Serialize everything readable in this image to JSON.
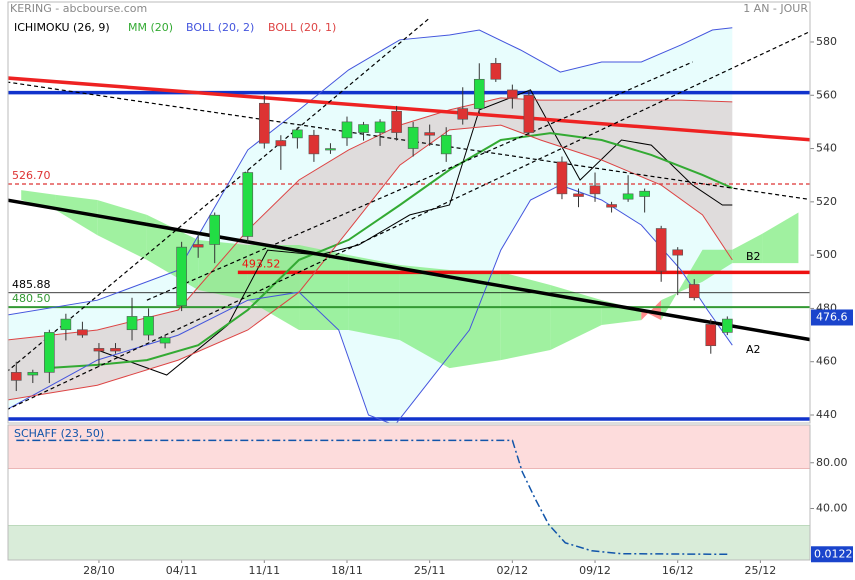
{
  "header": {
    "title": "KERING - abcbourse.com",
    "period": "1 AN - JOUR"
  },
  "chart_data": [
    {
      "type": "candlestick",
      "xlim": [
        -0.5,
        48
      ],
      "ylim": [
        437,
        595
      ],
      "yticks": [
        440,
        460,
        480,
        500,
        520,
        540,
        560,
        580
      ],
      "up_color": "#22dd44",
      "down_color": "#dd3333",
      "candles": {
        "x": [
          0,
          1,
          2,
          3,
          4,
          5,
          6,
          7,
          8,
          9,
          10,
          11,
          12,
          14,
          15,
          16,
          17,
          18,
          19,
          20,
          21,
          22,
          23,
          24,
          25,
          26,
          27,
          28,
          29,
          30,
          31,
          33,
          34,
          35,
          36,
          37,
          38,
          39,
          40,
          41,
          42,
          43
        ],
        "open": [
          456,
          455,
          456,
          472,
          472,
          465,
          465,
          472,
          470,
          467,
          481,
          504,
          504,
          507,
          557,
          543,
          544,
          545,
          540,
          544,
          546,
          546,
          554,
          540,
          546,
          538,
          555,
          555,
          572,
          562,
          560,
          535,
          523,
          526,
          519,
          521,
          522,
          510,
          502,
          489,
          474,
          471
        ],
        "high": [
          460,
          457,
          472,
          478,
          475,
          467,
          467,
          484,
          480,
          470,
          505,
          508,
          516,
          532,
          560,
          545,
          548,
          547,
          542,
          552,
          550,
          551,
          556,
          550,
          549,
          548,
          563,
          572,
          574,
          564,
          562,
          537,
          525,
          531,
          520,
          530,
          525,
          511,
          503,
          491,
          476,
          477
        ],
        "low": [
          449,
          452,
          452,
          468,
          469,
          458,
          463,
          468,
          468,
          465,
          479,
          499,
          497,
          505,
          540,
          532,
          540,
          535,
          538,
          541,
          543,
          541,
          543,
          537,
          541,
          535,
          549,
          553,
          565,
          555,
          545,
          521,
          518,
          520,
          516,
          520,
          516,
          490,
          485,
          483,
          463,
          470
        ],
        "close": [
          453,
          456,
          471,
          476,
          470,
          464,
          464,
          477,
          477,
          469,
          503,
          503,
          515,
          531,
          542,
          541,
          547,
          538,
          540,
          550,
          549,
          550,
          546,
          548,
          545,
          545,
          551,
          566,
          566,
          559,
          546,
          523,
          522,
          523,
          518,
          523,
          524,
          494,
          500,
          484,
          466,
          476
        ]
      },
      "series": [
        {
          "name": "ICHIMOKU (26, 9)",
          "color": "#000000",
          "x": [
            4.9,
            9.1,
            12.8,
            15.2,
            18.3,
            20.7,
            23.8,
            26.2,
            28.0,
            31.1,
            34.1,
            36.6,
            38.4,
            40.9,
            42.7,
            43.3
          ],
          "values": [
            464.4,
            455,
            473.8,
            501.9,
            500,
            503.8,
            515.1,
            518.8,
            554.5,
            562,
            528.2,
            543.2,
            541.3,
            526.3,
            518.8,
            518.8
          ],
          "cloud": {
            "colors": [
              "#ff6f6f",
              "#88ee88"
            ],
            "x": [
              0.3,
              2.4,
              4.9,
              7.9,
              11.0,
              14.0,
              17.1,
              20.1,
              23.2,
              26.2,
              29.3,
              32.3,
              35.4,
              37.8,
              39.0,
              41.5,
              43.3,
              45.1,
              47.3
            ],
            "span_a": [
              524.4,
              522.6,
              520.7,
              515.1,
              505.7,
              503.8,
              503.8,
              500,
              496.3,
              494.4,
              493.7,
              488.8,
              483.1,
              479.4,
              475.6,
              502,
              502,
              508,
              516
            ],
            "span_b": [
              520.7,
              516.9,
              507.5,
              498.2,
              486.9,
              483.1,
              471.9,
              471.9,
              468.1,
              457.6,
              460.6,
              464.4,
              473.8,
              475.6,
              483.1,
              490,
              497,
              497,
              497
            ]
          },
          "labels": [
            "B2",
            "A2"
          ]
        },
        {
          "name": "MM (20)",
          "color": "#33aa33",
          "x": [
            1.8,
            4.9,
            7.9,
            11.0,
            14.0,
            17.1,
            20.1,
            23.2,
            26.2,
            29.3,
            32.3,
            35.4,
            38.4,
            41.5,
            43.3
          ],
          "values": [
            457.6,
            458.8,
            460.6,
            466.2,
            479.4,
            498.2,
            505.7,
            518.8,
            532,
            543.2,
            545.8,
            543.2,
            537.6,
            530.1,
            525.2
          ]
        },
        {
          "name": "BOLL (20, 2)",
          "color": "#4455dd",
          "fill": "#e0fcfc",
          "upper": {
            "x": [
              -0.6,
              4.9,
              9.8,
              14.0,
              17.1,
              20.1,
              23.2,
              26.2,
              28.0,
              30.5,
              32.9,
              35.4,
              37.8,
              40.2,
              42.1,
              43.3
            ],
            "values": [
              477.5,
              483.1,
              494.4,
              539.5,
              554.5,
              569.5,
              580.8,
              582.6,
              584.5,
              577,
              568.7,
              572.5,
              572.5,
              578.9,
              584.5,
              585.3
            ]
          },
          "lower": {
            "x": [
              -0.6,
              4.9,
              9.8,
              14.0,
              17.1,
              19.5,
              21.3,
              22.9,
              27.4,
              29.3,
              31.1,
              32.9,
              35.4,
              37.8,
              40.2,
              41.8,
              43.3
            ],
            "values": [
              441.9,
              460.6,
              470,
              483.1,
              486.1,
              471.9,
              440,
              436.2,
              471.9,
              501.9,
              520.7,
              526.3,
              520.7,
              511.3,
              494.4,
              479.4,
              466.2
            ]
          }
        },
        {
          "name": "BOLL (20, 1)",
          "color": "#dd4444",
          "fill": "#dcd0d0",
          "upper": {
            "x": [
              -0.6,
              4.9,
              9.8,
              14.0,
              17.1,
              20.1,
              23.2,
              26.2,
              29.3,
              31.7,
              35.4,
              40.2,
              43.3
            ],
            "values": [
              468.1,
              471.9,
              479.4,
              509.4,
              528.2,
              539.5,
              548.8,
              554.5,
              559,
              558.2,
              558.2,
              558.2,
              557.5
            ]
          },
          "lower": {
            "x": [
              -0.6,
              4.9,
              9.8,
              14.0,
              17.1,
              20.1,
              23.2,
              26.2,
              29.3,
              31.7,
              35.4,
              39.0,
              41.5,
              43.3
            ],
            "values": [
              445.6,
              451.2,
              460.6,
              471.9,
              486.1,
              509.4,
              533.8,
              547,
              548.8,
              543.2,
              535.7,
              526.3,
              515.1,
              498.2
            ]
          }
        }
      ],
      "hlines": [
        {
          "value": 561,
          "color": "#1133cc",
          "style": "thick"
        },
        {
          "value": 438.5,
          "color": "#1133cc",
          "style": "thick"
        },
        {
          "value": 526.7,
          "label": "526.70",
          "color": "#dd3333",
          "style": "dashed"
        },
        {
          "value": 493.52,
          "label": "493.52",
          "color": "#ee1111",
          "style": "thick",
          "from_x": 13.4
        },
        {
          "value": 485.88,
          "label": "485.88",
          "color": "#000000",
          "style": "thin"
        },
        {
          "value": 480.5,
          "label": "480.50",
          "color": "#339933",
          "style": "medium"
        }
      ],
      "trendlines": [
        {
          "x": [
            -0.6,
            48.2
          ],
          "y": [
            566.5,
            543.2
          ],
          "color": "#ee2222",
          "style": "thick"
        },
        {
          "x": [
            -0.6,
            48.2
          ],
          "y": [
            520.7,
            468.1
          ],
          "color": "#000000",
          "style": "thick"
        },
        {
          "x": [
            -0.6,
            48.2
          ],
          "y": [
            565,
            520.7
          ],
          "color": "#000000",
          "style": "dashed"
        },
        {
          "x": [
            -0.6,
            48.2
          ],
          "y": [
            441.9,
            584.5
          ],
          "color": "#000000",
          "style": "dashed"
        },
        {
          "x": [
            -0.6,
            25.0
          ],
          "y": [
            456.1,
            589
          ],
          "color": "#000000",
          "style": "dashed"
        },
        {
          "x": [
            7.9,
            40.9
          ],
          "y": [
            483.1,
            572.5
          ],
          "color": "#000000",
          "style": "dashed"
        }
      ],
      "last": 476.6,
      "last_color": "#1a44cc"
    },
    {
      "type": "line",
      "title": "SCHAFF (23, 50)",
      "color": "#1155aa",
      "xlim": [
        -0.5,
        48
      ],
      "ylim": [
        -5,
        113
      ],
      "yticks": [
        {
          "value": 40,
          "label": "40.00"
        },
        {
          "value": 80,
          "label": "80.00"
        }
      ],
      "xticks": [
        {
          "value": 5,
          "label": "28/10"
        },
        {
          "value": 10,
          "label": "04/11"
        },
        {
          "value": 15,
          "label": "11/11"
        },
        {
          "value": 20,
          "label": "18/11"
        },
        {
          "value": 25,
          "label": "25/11"
        },
        {
          "value": 30,
          "label": "02/12"
        },
        {
          "value": 35,
          "label": "09/12"
        },
        {
          "value": 40,
          "label": "16/12"
        },
        {
          "value": 45,
          "label": "25/12"
        }
      ],
      "upper_zone": 75,
      "lower_zone": 25,
      "zone_colors": [
        "#fddcdc",
        "#d9ecd9"
      ],
      "x": [
        0,
        30,
        30.6,
        31.4,
        32.2,
        33.2,
        34.8,
        36.6,
        43
      ],
      "values": [
        99.5,
        99.5,
        72,
        48,
        26,
        10,
        3,
        0.5,
        0.0122
      ],
      "last": 0.0122,
      "last_color": "#1a44cc"
    }
  ]
}
